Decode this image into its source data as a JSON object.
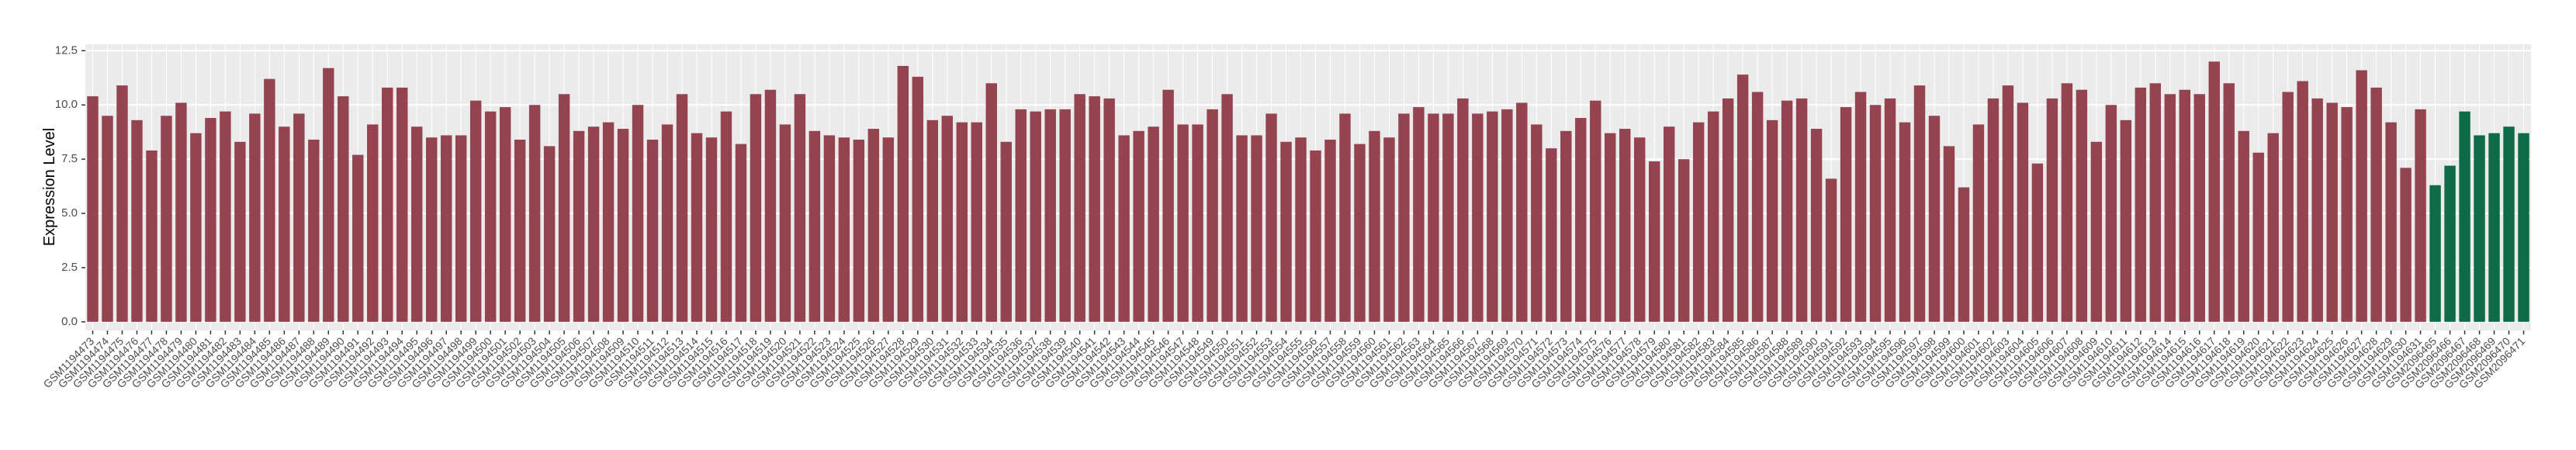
{
  "chart_data": {
    "type": "bar",
    "y_label": "Expression Level",
    "categories": [
      "GSM1194473",
      "GSM1194474",
      "GSM1194475",
      "GSM1194476",
      "GSM1194477",
      "GSM1194478",
      "GSM1194479",
      "GSM1194480",
      "GSM1194481",
      "GSM1194482",
      "GSM1194483",
      "GSM1194484",
      "GSM1194485",
      "GSM1194486",
      "GSM1194487",
      "GSM1194488",
      "GSM1194489",
      "GSM1194490",
      "GSM1194491",
      "GSM1194492",
      "GSM1194493",
      "GSM1194494",
      "GSM1194495",
      "GSM1194496",
      "GSM1194497",
      "GSM1194498",
      "GSM1194499",
      "GSM1194500",
      "GSM1194501",
      "GSM1194502",
      "GSM1194503",
      "GSM1194504",
      "GSM1194505",
      "GSM1194506",
      "GSM1194507",
      "GSM1194508",
      "GSM1194509",
      "GSM1194510",
      "GSM1194511",
      "GSM1194512",
      "GSM1194513",
      "GSM1194514",
      "GSM1194515",
      "GSM1194516",
      "GSM1194517",
      "GSM1194518",
      "GSM1194519",
      "GSM1194520",
      "GSM1194521",
      "GSM1194522",
      "GSM1194523",
      "GSM1194524",
      "GSM1194525",
      "GSM1194526",
      "GSM1194527",
      "GSM1194528",
      "GSM1194529",
      "GSM1194530",
      "GSM1194531",
      "GSM1194532",
      "GSM1194533",
      "GSM1194534",
      "GSM1194535",
      "GSM1194536",
      "GSM1194537",
      "GSM1194538",
      "GSM1194539",
      "GSM1194540",
      "GSM1194541",
      "GSM1194542",
      "GSM1194543",
      "GSM1194544",
      "GSM1194545",
      "GSM1194546",
      "GSM1194547",
      "GSM1194548",
      "GSM1194549",
      "GSM1194550",
      "GSM1194551",
      "GSM1194552",
      "GSM1194553",
      "GSM1194554",
      "GSM1194555",
      "GSM1194556",
      "GSM1194557",
      "GSM1194558",
      "GSM1194559",
      "GSM1194560",
      "GSM1194561",
      "GSM1194562",
      "GSM1194563",
      "GSM1194564",
      "GSM1194565",
      "GSM1194566",
      "GSM1194567",
      "GSM1194568",
      "GSM1194569",
      "GSM1194570",
      "GSM1194571",
      "GSM1194572",
      "GSM1194573",
      "GSM1194574",
      "GSM1194575",
      "GSM1194576",
      "GSM1194577",
      "GSM1194578",
      "GSM1194579",
      "GSM1194580",
      "GSM1194581",
      "GSM1194582",
      "GSM1194583",
      "GSM1194584",
      "GSM1194585",
      "GSM1194586",
      "GSM1194587",
      "GSM1194588",
      "GSM1194589",
      "GSM1194590",
      "GSM1194591",
      "GSM1194592",
      "GSM1194593",
      "GSM1194594",
      "GSM1194595",
      "GSM1194596",
      "GSM1194597",
      "GSM1194598",
      "GSM1194599",
      "GSM1194600",
      "GSM1194601",
      "GSM1194602",
      "GSM1194603",
      "GSM1194604",
      "GSM1194605",
      "GSM1194606",
      "GSM1194607",
      "GSM1194608",
      "GSM1194609",
      "GSM1194610",
      "GSM1194611",
      "GSM1194612",
      "GSM1194613",
      "GSM1194614",
      "GSM1194615",
      "GSM1194616",
      "GSM1194617",
      "GSM1194618",
      "GSM1194619",
      "GSM1194620",
      "GSM1194621",
      "GSM1194622",
      "GSM1194623",
      "GSM1194624",
      "GSM1194625",
      "GSM1194626",
      "GSM1194627",
      "GSM1194628",
      "GSM1194629",
      "GSM1194630",
      "GSM1194631",
      "GSM2096465",
      "GSM2096466",
      "GSM2096467",
      "GSM2096468",
      "GSM2096469",
      "GSM2096470",
      "GSM2096471"
    ],
    "values": [
      10.4,
      9.5,
      10.9,
      9.3,
      7.9,
      9.5,
      10.1,
      8.7,
      9.4,
      9.7,
      8.3,
      9.6,
      11.2,
      9.0,
      9.6,
      8.4,
      11.7,
      10.4,
      7.7,
      9.1,
      10.8,
      10.8,
      9.0,
      8.5,
      8.6,
      8.6,
      10.2,
      9.7,
      9.9,
      8.4,
      10.0,
      8.1,
      10.5,
      8.8,
      9.0,
      9.2,
      8.9,
      10.0,
      8.4,
      9.1,
      10.5,
      8.7,
      8.5,
      9.7,
      8.2,
      10.5,
      10.7,
      9.1,
      10.5,
      8.8,
      8.6,
      8.5,
      8.4,
      8.9,
      8.5,
      11.8,
      11.3,
      9.3,
      9.5,
      9.2,
      9.2,
      11.0,
      8.3,
      9.8,
      9.7,
      9.8,
      9.8,
      10.5,
      10.4,
      10.3,
      8.6,
      8.8,
      9.0,
      10.7,
      9.1,
      9.1,
      9.8,
      10.5,
      8.6,
      8.6,
      9.6,
      8.3,
      8.5,
      7.9,
      8.4,
      9.6,
      8.2,
      8.8,
      8.5,
      9.6,
      9.9,
      9.6,
      9.6,
      10.3,
      9.6,
      9.7,
      9.8,
      10.1,
      9.1,
      8.0,
      8.8,
      9.4,
      10.2,
      8.7,
      8.9,
      8.5,
      7.4,
      9.0,
      7.5,
      9.2,
      9.7,
      10.3,
      11.4,
      10.6,
      9.3,
      10.2,
      10.3,
      8.9,
      6.6,
      9.9,
      10.6,
      10.0,
      10.3,
      9.2,
      10.9,
      9.5,
      8.1,
      6.2,
      9.1,
      10.3,
      10.9,
      10.1,
      7.3,
      10.3,
      11.0,
      10.7,
      8.3,
      10.0,
      9.3,
      10.8,
      11.0,
      10.5,
      10.7,
      10.5,
      12.0,
      11.0,
      8.8,
      7.8,
      8.7,
      10.6,
      11.1,
      10.3,
      10.1,
      9.9,
      11.6,
      10.8,
      9.2,
      7.1,
      9.8,
      6.3,
      7.2,
      9.7,
      8.6,
      8.7,
      9.0,
      8.7
    ],
    "colors": [
      "#964350",
      "#964350",
      "#964350",
      "#964350",
      "#964350",
      "#964350",
      "#964350",
      "#964350",
      "#964350",
      "#964350",
      "#964350",
      "#964350",
      "#964350",
      "#964350",
      "#964350",
      "#964350",
      "#964350",
      "#964350",
      "#964350",
      "#964350",
      "#964350",
      "#964350",
      "#964350",
      "#964350",
      "#964350",
      "#964350",
      "#964350",
      "#964350",
      "#964350",
      "#964350",
      "#964350",
      "#964350",
      "#964350",
      "#964350",
      "#964350",
      "#964350",
      "#964350",
      "#964350",
      "#964350",
      "#964350",
      "#964350",
      "#964350",
      "#964350",
      "#964350",
      "#964350",
      "#964350",
      "#964350",
      "#964350",
      "#964350",
      "#964350",
      "#964350",
      "#964350",
      "#964350",
      "#964350",
      "#964350",
      "#964350",
      "#964350",
      "#964350",
      "#964350",
      "#964350",
      "#964350",
      "#964350",
      "#964350",
      "#964350",
      "#964350",
      "#964350",
      "#964350",
      "#964350",
      "#964350",
      "#964350",
      "#964350",
      "#964350",
      "#964350",
      "#964350",
      "#964350",
      "#964350",
      "#964350",
      "#964350",
      "#964350",
      "#964350",
      "#964350",
      "#964350",
      "#964350",
      "#964350",
      "#964350",
      "#964350",
      "#964350",
      "#964350",
      "#964350",
      "#964350",
      "#964350",
      "#964350",
      "#964350",
      "#964350",
      "#964350",
      "#964350",
      "#964350",
      "#964350",
      "#964350",
      "#964350",
      "#964350",
      "#964350",
      "#964350",
      "#964350",
      "#964350",
      "#964350",
      "#964350",
      "#964350",
      "#964350",
      "#964350",
      "#964350",
      "#964350",
      "#964350",
      "#964350",
      "#964350",
      "#964350",
      "#964350",
      "#964350",
      "#964350",
      "#964350",
      "#964350",
      "#964350",
      "#964350",
      "#964350",
      "#964350",
      "#964350",
      "#964350",
      "#964350",
      "#964350",
      "#964350",
      "#964350",
      "#964350",
      "#964350",
      "#964350",
      "#964350",
      "#964350",
      "#964350",
      "#964350",
      "#964350",
      "#964350",
      "#964350",
      "#964350",
      "#964350",
      "#964350",
      "#964350",
      "#964350",
      "#964350",
      "#964350",
      "#964350",
      "#964350",
      "#964350",
      "#964350",
      "#964350",
      "#964350",
      "#964350",
      "#964350",
      "#964350",
      "#964350",
      "#964350",
      "#0d6b47",
      "#0d6b47",
      "#0d6b47",
      "#0d6b47",
      "#0d6b47",
      "#0d6b47",
      "#0d6b47"
    ],
    "ylim": [
      -0.4,
      12.8
    ],
    "yticks": [
      {
        "value": 0,
        "label": "0.0"
      },
      2.5,
      {
        "value": 5,
        "label": "5.0"
      },
      7.5,
      {
        "value": 10,
        "label": "10.0"
      },
      12.5
    ],
    "grid": true
  }
}
